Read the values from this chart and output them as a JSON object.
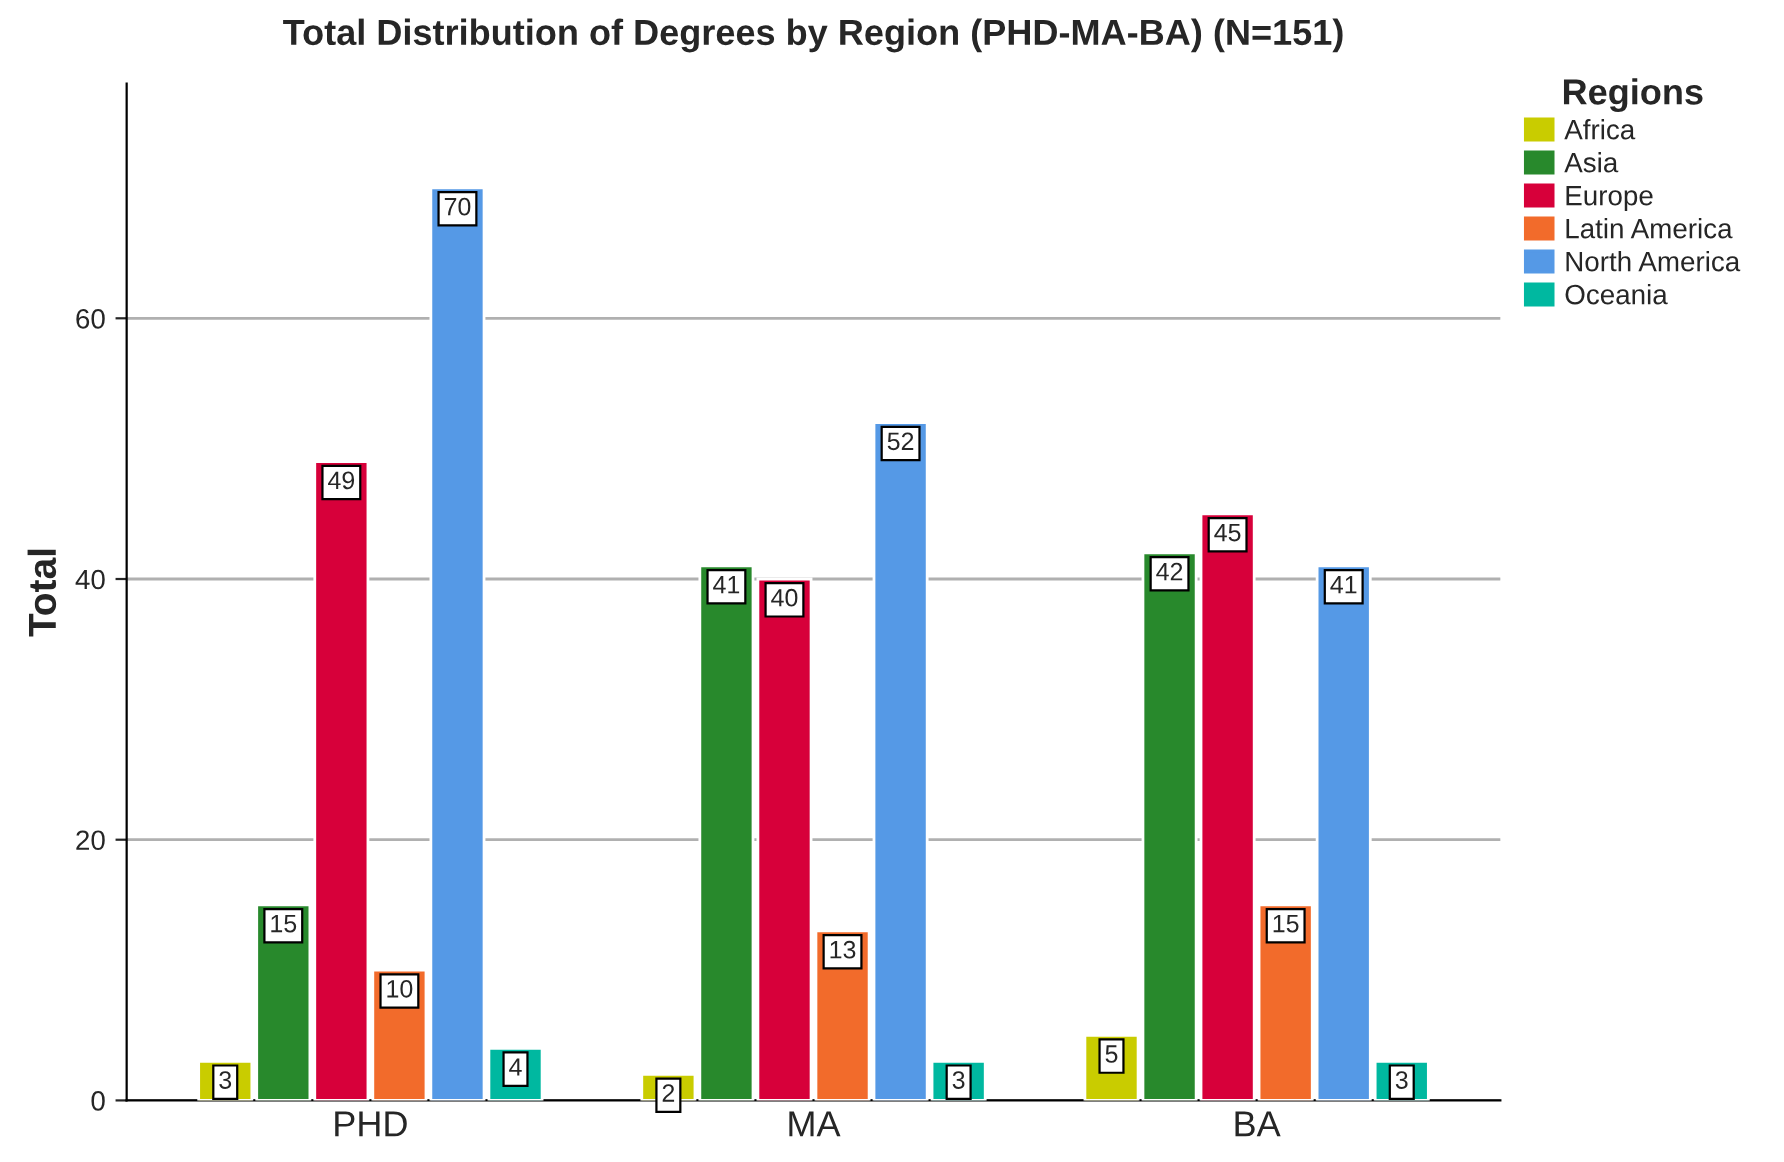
{
  "chart_data": {
    "type": "bar",
    "title": "Total Distribution of Degrees by Region (PHD-MA-BA) (N=151)",
    "ylabel": "Total",
    "legend_title": "Regions",
    "categories": [
      "PHD",
      "MA",
      "BA"
    ],
    "series": [
      {
        "name": "Africa",
        "color": "#c9cc00",
        "values": [
          3,
          2,
          5
        ]
      },
      {
        "name": "Asia",
        "color": "#28892c",
        "values": [
          15,
          41,
          42
        ]
      },
      {
        "name": "Europe",
        "color": "#d7003a",
        "values": [
          49,
          40,
          45
        ]
      },
      {
        "name": "Latin America",
        "color": "#f26b2b",
        "values": [
          10,
          13,
          15
        ]
      },
      {
        "name": "North America",
        "color": "#5599e6",
        "values": [
          70,
          52,
          41
        ]
      },
      {
        "name": "Oceania",
        "color": "#00b8a0",
        "values": [
          4,
          3,
          3
        ]
      }
    ],
    "ylim": [
      0,
      78
    ],
    "yticks": [
      0,
      20,
      40,
      60
    ],
    "grid": "y",
    "legend": "top right",
    "data_labels": true
  }
}
